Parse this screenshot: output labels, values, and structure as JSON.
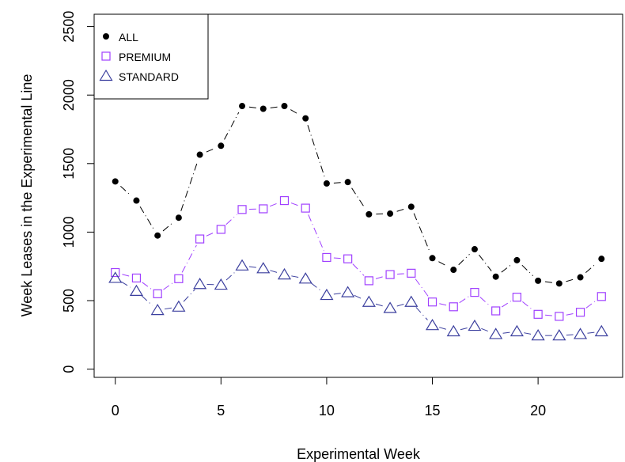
{
  "chart_data": {
    "type": "line",
    "xlabel": "Experimental Week",
    "ylabel": "Week Leases in the Experimental Line",
    "xlim": [
      -1,
      24
    ],
    "ylim": [
      -60,
      2590
    ],
    "x_ticks": [
      0,
      5,
      10,
      15,
      20
    ],
    "y_ticks": [
      0,
      500,
      1000,
      1500,
      2000,
      2500
    ],
    "grid": false,
    "legend_position": "top-left",
    "x": [
      0,
      1,
      2,
      3,
      4,
      5,
      6,
      7,
      8,
      9,
      10,
      11,
      12,
      13,
      14,
      15,
      16,
      17,
      18,
      19,
      20,
      21,
      22,
      23
    ],
    "series": [
      {
        "name": "ALL",
        "marker": "filled-circle",
        "color": "#000000",
        "values": [
          1370,
          1230,
          975,
          1105,
          1565,
          1630,
          1920,
          1900,
          1920,
          1830,
          1355,
          1365,
          1130,
          1135,
          1185,
          810,
          725,
          875,
          675,
          795,
          645,
          625,
          670,
          805
        ]
      },
      {
        "name": "PREMIUM",
        "marker": "open-square",
        "color": "#a040ff",
        "values": [
          705,
          665,
          550,
          660,
          950,
          1020,
          1165,
          1170,
          1230,
          1175,
          815,
          805,
          645,
          690,
          700,
          490,
          455,
          560,
          425,
          525,
          400,
          385,
          415,
          530
        ]
      },
      {
        "name": "STANDARD",
        "marker": "open-triangle",
        "color": "#3b3f9e",
        "values": [
          665,
          570,
          430,
          455,
          620,
          615,
          755,
          735,
          690,
          660,
          540,
          560,
          490,
          445,
          490,
          320,
          275,
          315,
          255,
          275,
          245,
          245,
          255,
          275
        ]
      }
    ]
  }
}
